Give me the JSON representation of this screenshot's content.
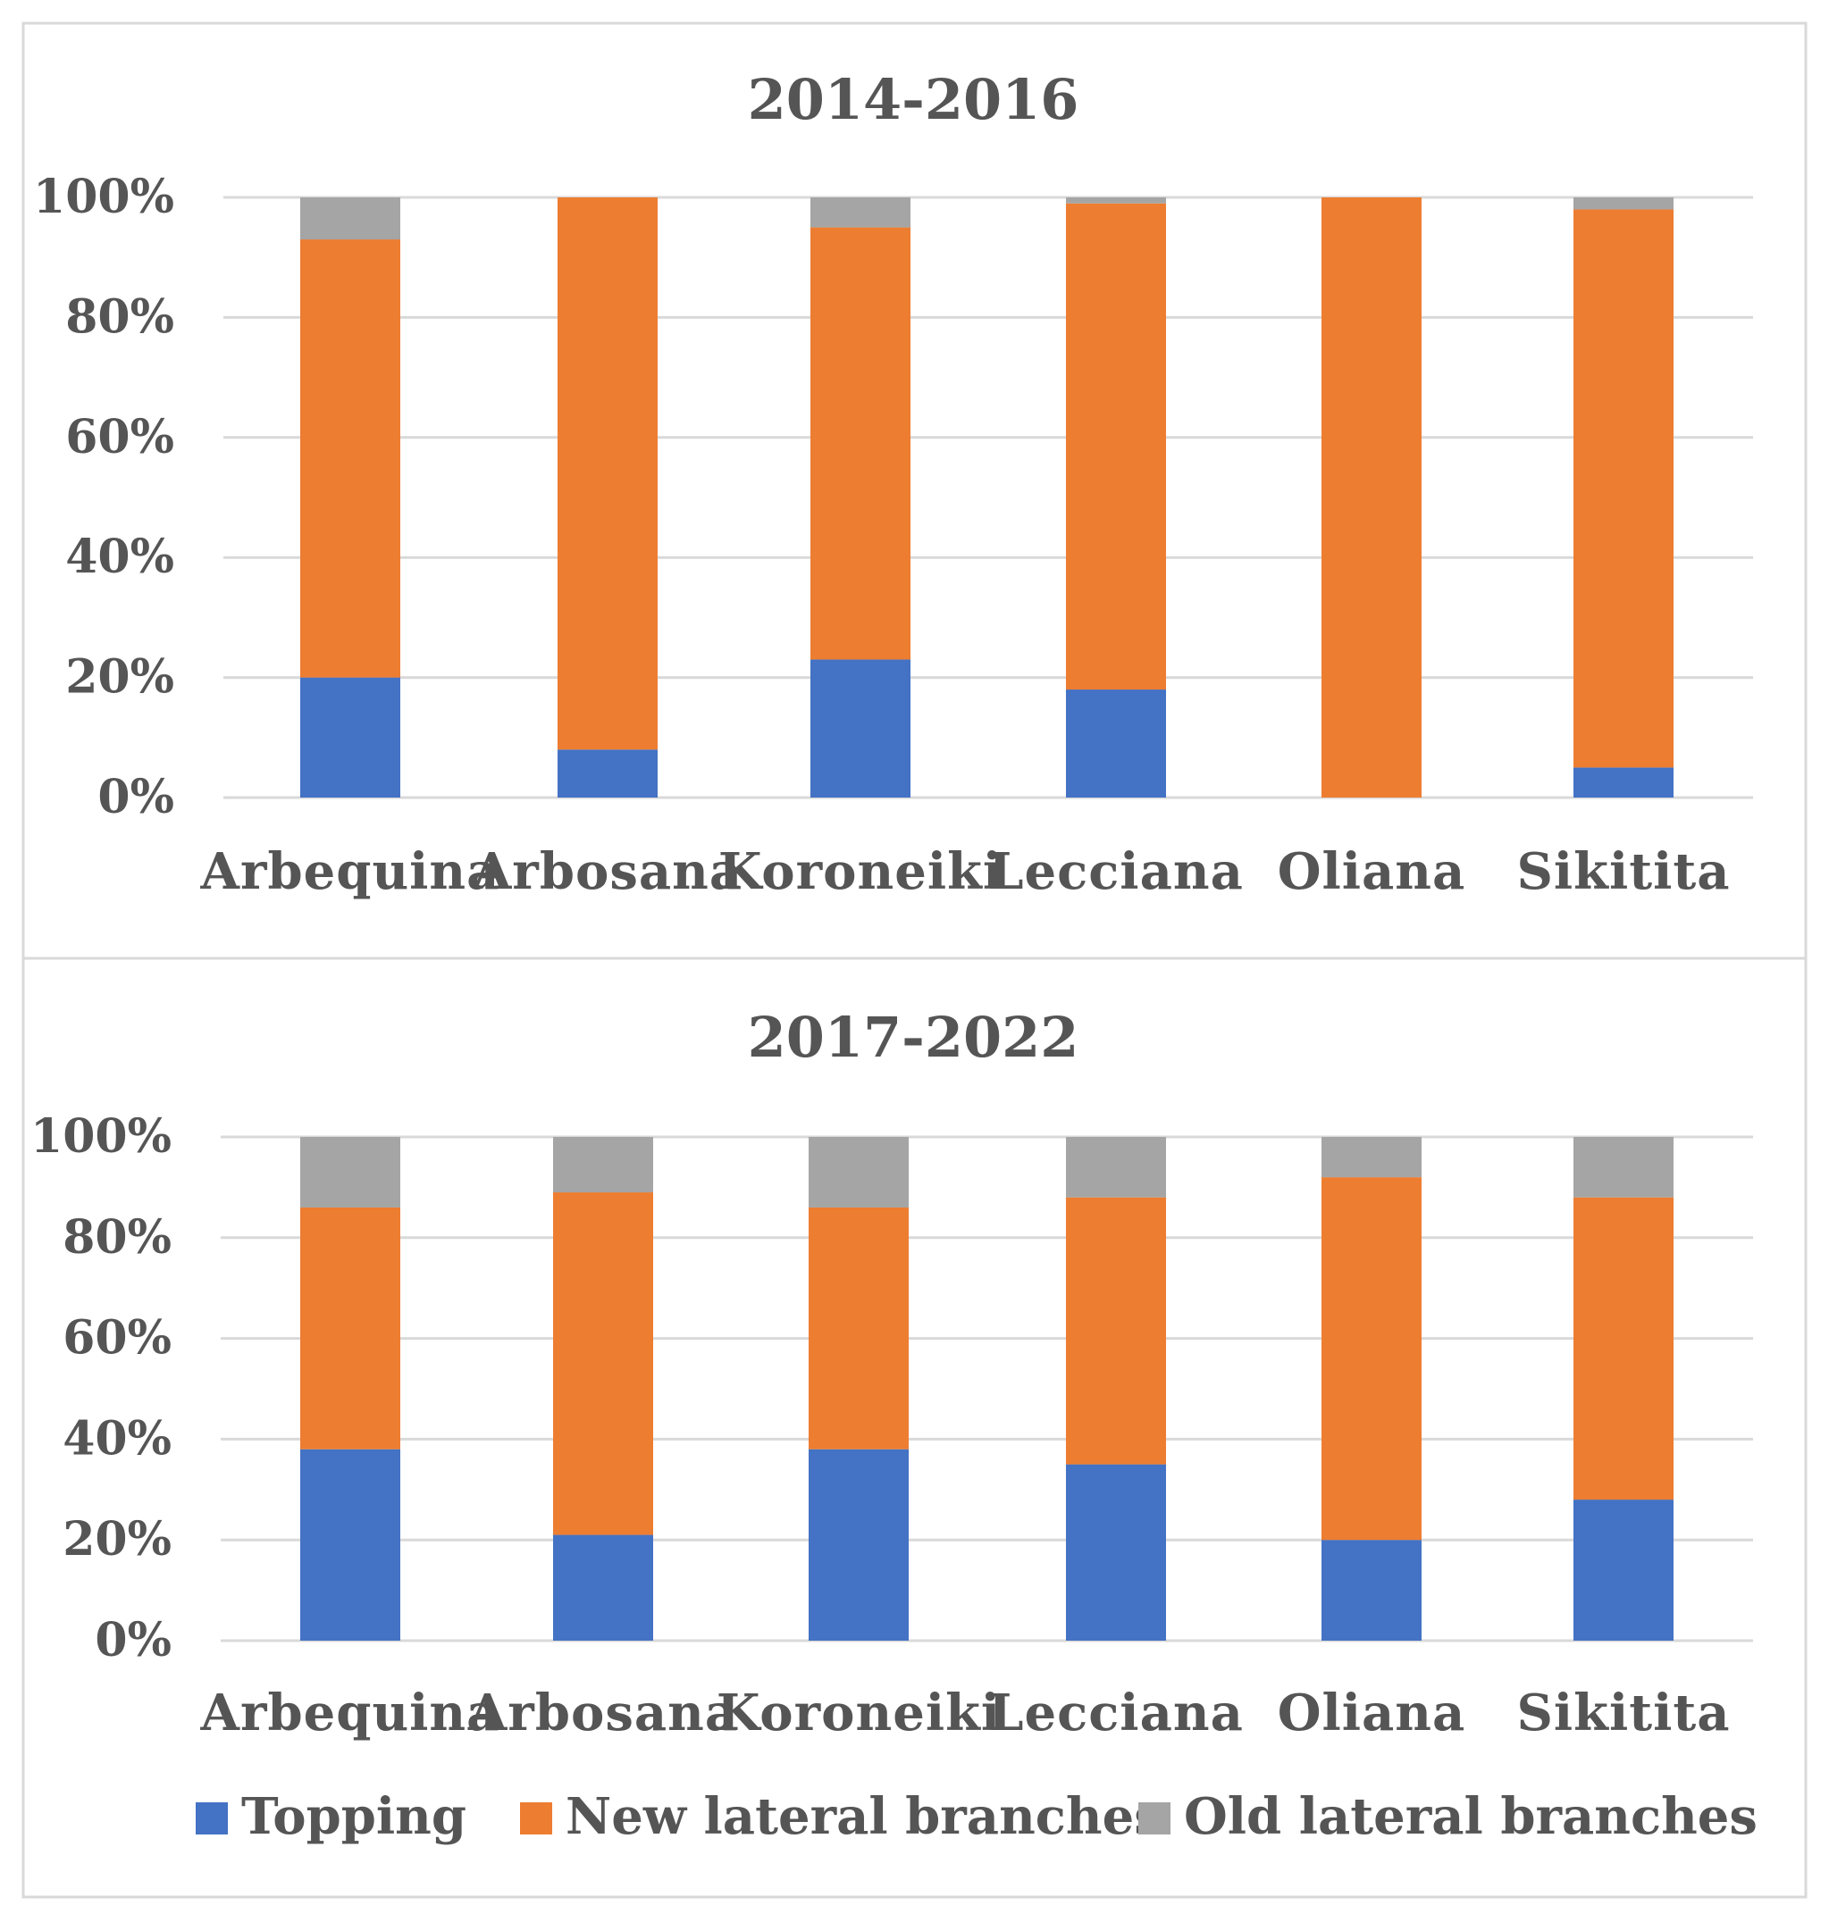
{
  "chart_data": [
    {
      "type": "bar",
      "stacked": true,
      "title": "2014-2016",
      "xlabel": "",
      "ylabel": "",
      "ylim": [
        0,
        100
      ],
      "y_ticks": [
        "0%",
        "20%",
        "40%",
        "60%",
        "80%",
        "100%"
      ],
      "categories": [
        "Arbequina",
        "Arbosana",
        "Koroneiki",
        "Lecciana",
        "Oliana",
        "Sikitita"
      ],
      "series": [
        {
          "name": "Topping",
          "color": "#4472C4",
          "values": [
            20,
            8,
            23,
            18,
            0,
            5
          ]
        },
        {
          "name": "New lateral branches",
          "color": "#ED7D31",
          "values": [
            73,
            92,
            72,
            81,
            100,
            93
          ]
        },
        {
          "name": "Old lateral branches",
          "color": "#A5A5A5",
          "values": [
            7,
            0,
            5,
            1,
            0,
            2
          ]
        }
      ],
      "grid": true
    },
    {
      "type": "bar",
      "stacked": true,
      "title": "2017-2022",
      "xlabel": "",
      "ylabel": "",
      "ylim": [
        0,
        100
      ],
      "y_ticks": [
        "0%",
        "20%",
        "40%",
        "60%",
        "80%",
        "100%"
      ],
      "categories": [
        "Arbequina",
        "Arbosana",
        "Koroneiki",
        "Lecciana",
        "Oliana",
        "Sikitita"
      ],
      "series": [
        {
          "name": "Topping",
          "color": "#4472C4",
          "values": [
            38,
            21,
            38,
            35,
            20,
            28
          ]
        },
        {
          "name": "New lateral branches",
          "color": "#ED7D31",
          "values": [
            48,
            68,
            48,
            53,
            72,
            60
          ]
        },
        {
          "name": "Old lateral branches",
          "color": "#A5A5A5",
          "values": [
            14,
            11,
            14,
            12,
            8,
            12
          ]
        }
      ],
      "grid": true
    }
  ],
  "legend": {
    "position": "bottom",
    "items": [
      {
        "label": "Topping",
        "color": "#4472C4"
      },
      {
        "label": "New lateral branches",
        "color": "#ED7D31"
      },
      {
        "label": "Old lateral branches",
        "color": "#A5A5A5"
      }
    ]
  },
  "colors": {
    "grid": "#D9D9D9",
    "frame": "#D9D9D9",
    "text": "#555555"
  }
}
